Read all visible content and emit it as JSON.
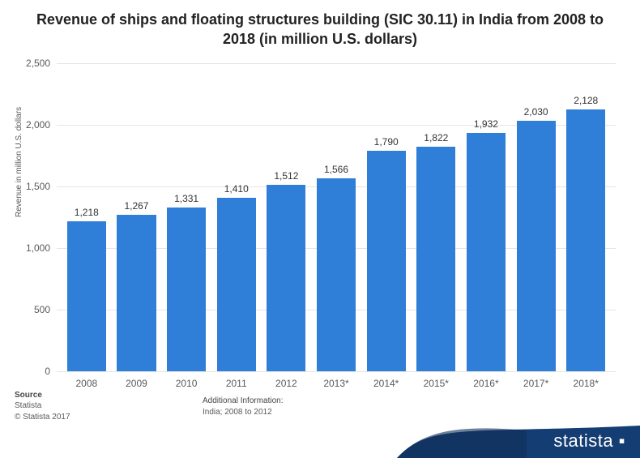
{
  "title": "Revenue of ships and floating structures building (SIC 30.11) in India from 2008 to 2018 (in million U.S. dollars)",
  "title_fontsize": 18,
  "chart": {
    "type": "bar",
    "categories": [
      "2008",
      "2009",
      "2010",
      "2011",
      "2012",
      "2013*",
      "2014*",
      "2015*",
      "2016*",
      "2017*",
      "2018*"
    ],
    "values": [
      1218,
      1267,
      1331,
      1410,
      1512,
      1566,
      1790,
      1822,
      1932,
      2030,
      2128
    ],
    "value_labels": [
      "1,218",
      "1,267",
      "1,331",
      "1,410",
      "1,512",
      "1,566",
      "1,790",
      "1,822",
      "1,932",
      "2,030",
      "2,128"
    ],
    "bar_color": "#2f7ed8",
    "background_color": "#ffffff",
    "grid_color": "#e5e5e5",
    "ylim": [
      0,
      2500
    ],
    "yticks": [
      0,
      500,
      1000,
      1500,
      2000,
      2500
    ],
    "ytick_labels": [
      "0",
      "500",
      "1,000",
      "1,500",
      "2,000",
      "2,500"
    ],
    "ylabel": "Revenue in million U.S. dollars",
    "ylabel_fontsize": 10,
    "tick_fontsize": 12,
    "value_label_fontsize": 12,
    "bar_width": 0.78
  },
  "footer": {
    "source_heading": "Source",
    "source_name": "Statista",
    "copyright": "© Statista 2017",
    "addl_heading": "Additional Information:",
    "addl_text": "India; 2008 to 2012"
  },
  "brand": {
    "name": "statista",
    "swoosh_color": "#143d73",
    "text_color": "#ffffff"
  }
}
